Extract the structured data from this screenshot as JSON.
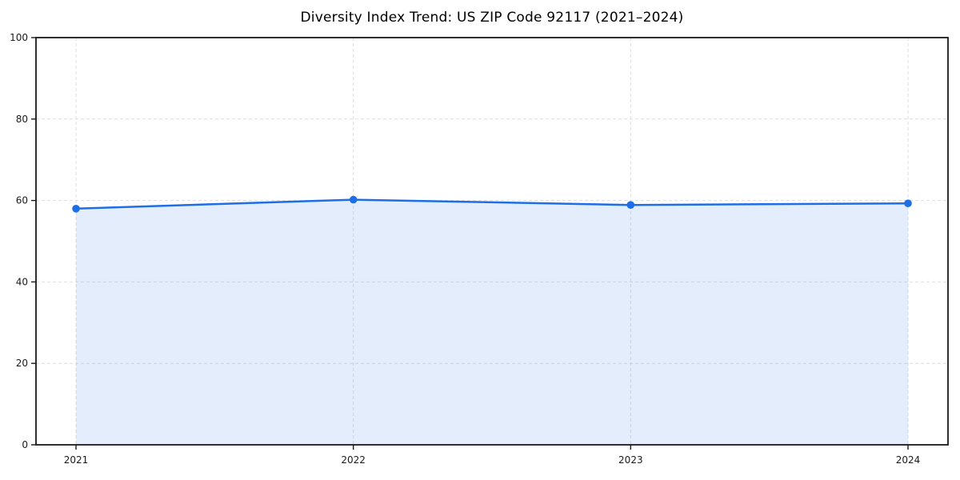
{
  "figure": {
    "background": "#ffffff"
  },
  "chart_data": {
    "type": "area",
    "title": "Diversity Index Trend: US ZIP Code 92117 (2021–2024)",
    "x": [
      2021,
      2022,
      2023,
      2024
    ],
    "values": [
      58.0,
      60.2,
      58.9,
      59.3
    ],
    "xticks": [
      2021,
      2022,
      2023,
      2024
    ],
    "xtick_labels": [
      "2021",
      "2022",
      "2023",
      "2024"
    ],
    "yticks": [
      0,
      20,
      40,
      60,
      80,
      100
    ],
    "ytick_labels": [
      "0",
      "20",
      "40",
      "60",
      "80",
      "100"
    ],
    "ylim": [
      0,
      100
    ],
    "xlabel": "",
    "ylabel": "",
    "grid": true,
    "grid_style": "dashed",
    "legend": "none",
    "colors": {
      "line": "#1e6ee6",
      "fill": "rgba(30,110,230,0.12)",
      "grid": "#dedede",
      "spine": "#1a1a1a",
      "tick_label": "#1a1a1a",
      "title": "#000000"
    }
  }
}
